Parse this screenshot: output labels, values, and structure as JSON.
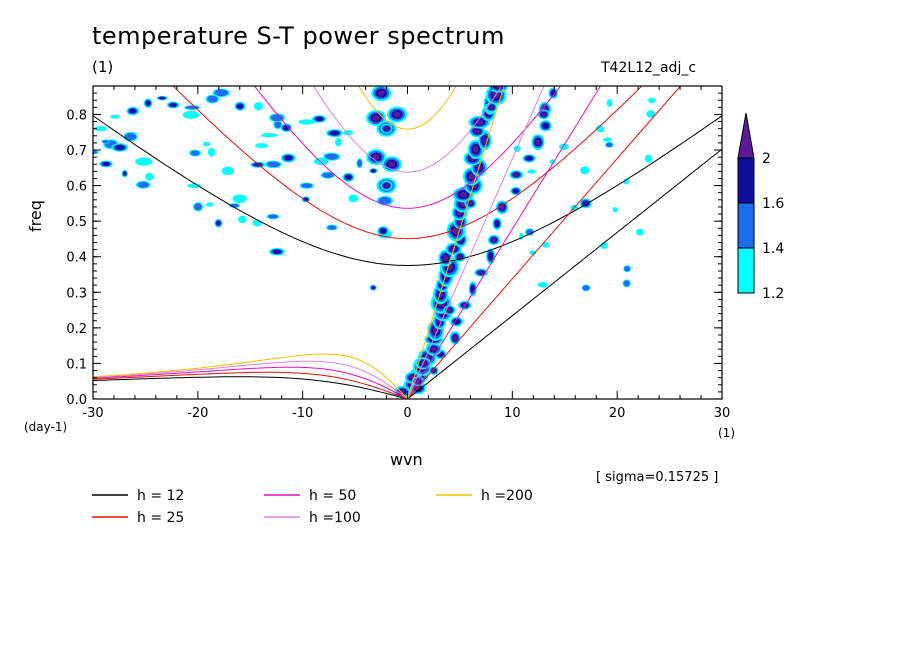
{
  "title": "temperature S-T power spectrum",
  "subtitle": "(1)",
  "run_label": "T42L12_adj_c",
  "sigma_note": "[ sigma=0.15725 ]",
  "chart_data": {
    "type": "contour",
    "title": "temperature S-T power spectrum",
    "xlabel": "wvn",
    "ylabel": "freq",
    "x_unit": "(1)",
    "y_unit": "(day-1)",
    "xlim": [
      -30,
      30
    ],
    "ylim": [
      0.0,
      0.88
    ],
    "x_ticks": [
      -30,
      -20,
      -10,
      0,
      10,
      20,
      30
    ],
    "y_ticks": [
      0.0,
      0.1,
      0.2,
      0.3,
      0.4,
      0.5,
      0.6,
      0.7,
      0.8
    ],
    "colorbar": {
      "levels": [
        1.2,
        1.4,
        1.6,
        2
      ],
      "colors": [
        "#00ffff",
        "#1e6cf0",
        "#1010a0",
        "#5a1a9a"
      ]
    },
    "dispersion_curves": [
      {
        "name": "h = 12",
        "h": 12,
        "color": "#000000"
      },
      {
        "name": "h = 25",
        "h": 25,
        "color": "#e01010"
      },
      {
        "name": "h = 50",
        "h": 50,
        "color": "#e010c0"
      },
      {
        "name": "h =100",
        "h": 100,
        "color": "#e080e0"
      },
      {
        "name": "h =200",
        "h": 200,
        "color": "#f0c000"
      }
    ],
    "spectral_peaks": [
      {
        "x": -2,
        "y": 0.76
      },
      {
        "x": -2,
        "y": 0.6
      },
      {
        "x": 4,
        "y": 0.25
      },
      {
        "x": 5,
        "y": 0.4
      },
      {
        "x": 6,
        "y": 0.55
      },
      {
        "x": 8,
        "y": 0.82
      },
      {
        "x": 1,
        "y": 0.05
      },
      {
        "x": 13,
        "y": 0.8
      },
      {
        "x": 17,
        "y": 0.55
      }
    ]
  }
}
